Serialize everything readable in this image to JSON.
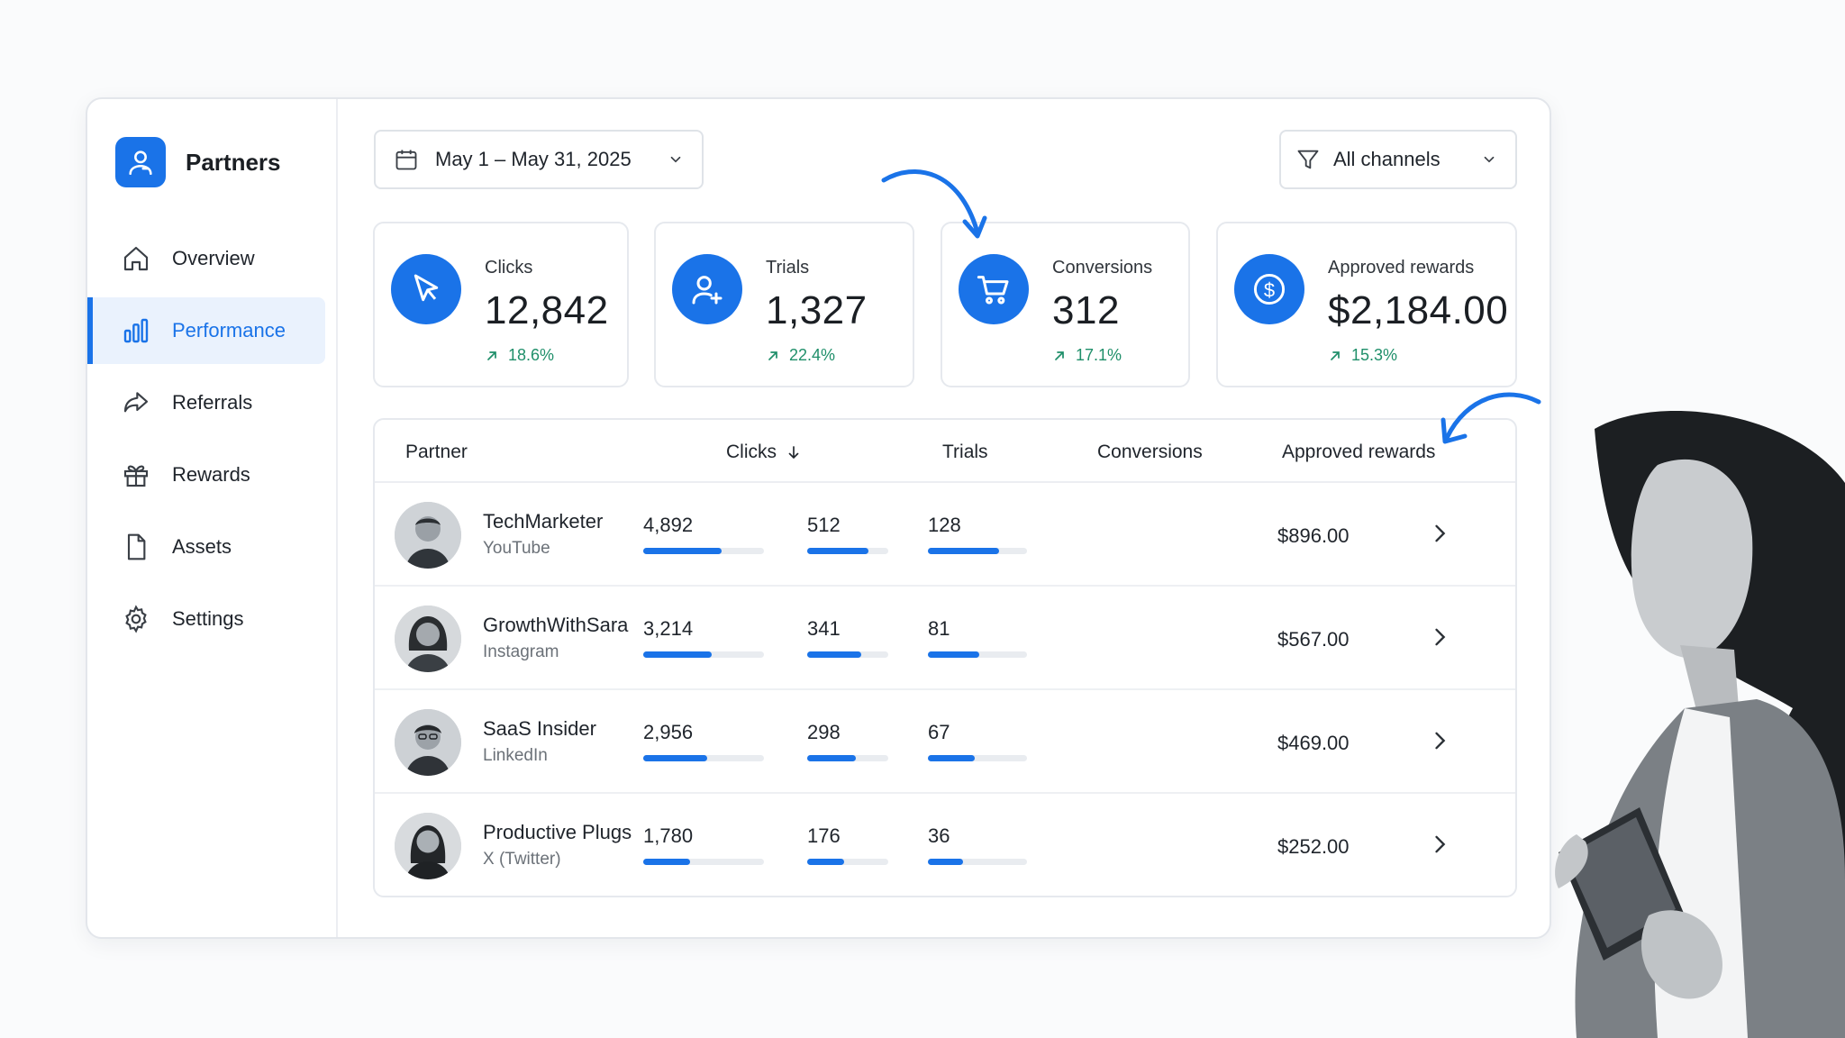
{
  "brand": {
    "name": "Partners",
    "icon": "user-icon"
  },
  "nav": [
    {
      "label": "Overview",
      "icon": "home-icon",
      "active": false
    },
    {
      "label": "Performance",
      "icon": "bar-chart-icon",
      "active": true
    },
    {
      "label": "Referrals",
      "icon": "share-icon",
      "active": false
    },
    {
      "label": "Rewards",
      "icon": "gift-icon",
      "active": false
    },
    {
      "label": "Assets",
      "icon": "file-icon",
      "active": false
    },
    {
      "label": "Settings",
      "icon": "gear-icon",
      "active": false
    }
  ],
  "toolbar": {
    "date_range": "May 1 – May 31, 2025",
    "channel_filter": "All channels"
  },
  "stats": [
    {
      "label": "Clicks",
      "value": "12,842",
      "change": "18.6%",
      "icon": "cursor-icon"
    },
    {
      "label": "Trials",
      "value": "1,327",
      "change": "22.4%",
      "icon": "user-plus-icon"
    },
    {
      "label": "Conversions",
      "value": "312",
      "change": "17.1%",
      "icon": "cart-icon"
    },
    {
      "label": "Approved rewards",
      "value": "$2,184.00",
      "change": "15.3%",
      "icon": "dollar-icon"
    }
  ],
  "table": {
    "headers": {
      "partner": "Partner",
      "clicks": "Clicks",
      "trials": "Trials",
      "conversions": "Conversions",
      "rewards": "Approved rewards"
    },
    "rows": [
      {
        "name": "TechMarketer",
        "channel": "YouTube",
        "clicks": "4,892",
        "clicks_pct": 0.65,
        "trials": "512",
        "trials_pct": 0.75,
        "conversions": "128",
        "conversions_pct": 0.72,
        "reward": "$896.00"
      },
      {
        "name": "GrowthWithSara",
        "channel": "Instagram",
        "clicks": "3,214",
        "clicks_pct": 0.57,
        "trials": "341",
        "trials_pct": 0.67,
        "conversions": "81",
        "conversions_pct": 0.52,
        "reward": "$567.00"
      },
      {
        "name": "SaaS Insider",
        "channel": "LinkedIn",
        "clicks": "2,956",
        "clicks_pct": 0.53,
        "trials": "298",
        "trials_pct": 0.6,
        "conversions": "67",
        "conversions_pct": 0.47,
        "reward": "$469.00"
      },
      {
        "name": "Productive Plugs",
        "channel": "X (Twitter)",
        "clicks": "1,780",
        "clicks_pct": 0.39,
        "trials": "176",
        "trials_pct": 0.46,
        "conversions": "36",
        "conversions_pct": 0.35,
        "reward": "$252.00"
      }
    ]
  },
  "colors": {
    "accent": "#1a73e8",
    "positive": "#1f8f6a"
  }
}
